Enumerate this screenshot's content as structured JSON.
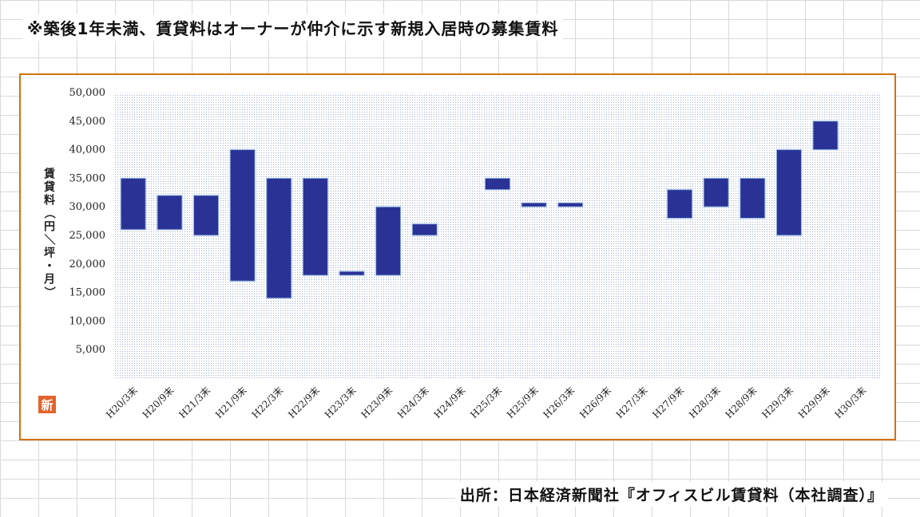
{
  "note": "※築後1年未満、賃貸料はオーナーが仲介に示す新規入居時の募集賃料",
  "source": "出所：日本経済新聞社『オフィスビル賃貸料（本社調査）』",
  "logo_text": "新",
  "colors": {
    "bar": "#2b3296",
    "bar_stroke": "#8fb3e0",
    "frame": "#d4720c",
    "plot_dots": "#9aa8d8"
  },
  "chart_data": {
    "type": "bar",
    "subtype": "floating-range",
    "title": "",
    "xlabel": "",
    "ylabel": "賃貸料（円／坪・月）",
    "ylim": [
      0,
      50000
    ],
    "y_ticks": [
      5000,
      10000,
      15000,
      20000,
      25000,
      30000,
      35000,
      40000,
      45000,
      50000
    ],
    "y_tick_labels": [
      "5,000",
      "10,000",
      "15,000",
      "20,000",
      "25,000",
      "30,000",
      "35,000",
      "40,000",
      "45,000",
      "50,000"
    ],
    "grid": true,
    "categories": [
      "H20/3末",
      "H20/9末",
      "H21/3末",
      "H21/9末",
      "H22/3末",
      "H22/9末",
      "H23/3末",
      "H23/9末",
      "H24/3末",
      "H24/9末",
      "H25/3末",
      "H25/9末",
      "H26/3末",
      "H26/9末",
      "H27/3末",
      "H27/9末",
      "H28/3末",
      "H28/9末",
      "H29/3末",
      "H29/9末",
      "H30/3末"
    ],
    "ranges": [
      [
        26000,
        35000
      ],
      [
        26000,
        32000
      ],
      [
        25000,
        32000
      ],
      [
        17000,
        40000
      ],
      [
        14000,
        35000
      ],
      [
        18000,
        35000
      ],
      [
        18000,
        18700
      ],
      [
        18000,
        30000
      ],
      [
        25000,
        27000
      ],
      null,
      [
        33000,
        35000
      ],
      [
        30000,
        30700
      ],
      [
        30000,
        30700
      ],
      null,
      null,
      [
        28000,
        33000
      ],
      [
        30000,
        35000
      ],
      [
        28000,
        35000
      ],
      [
        25000,
        40000
      ],
      [
        40000,
        45000
      ],
      null
    ]
  }
}
